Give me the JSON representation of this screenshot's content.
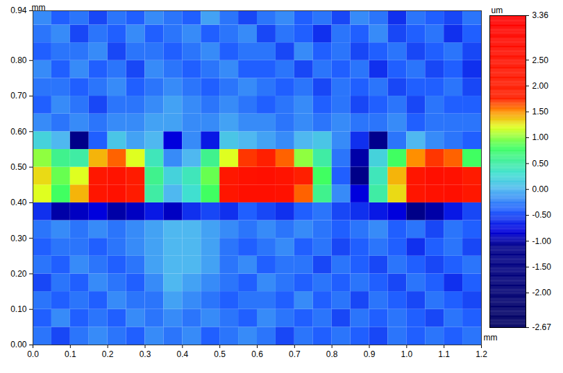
{
  "chart_data": {
    "type": "heatmap",
    "x_label": "mm",
    "y_label": "mm",
    "xlim": [
      0,
      1.2
    ],
    "ylim": [
      0,
      0.94
    ],
    "xticks": [
      {
        "value": 0,
        "label": "0.0"
      },
      0.1,
      0.2,
      0.3,
      0.4,
      0.5,
      0.6,
      0.7,
      0.8,
      0.9,
      {
        "value": 1,
        "label": "1.0"
      },
      1.1,
      1.2
    ],
    "yticks": [
      {
        "value": 0,
        "label": "0.00"
      },
      {
        "value": 0.1,
        "label": "0.10"
      },
      {
        "value": 0.2,
        "label": "0.20"
      },
      {
        "value": 0.3,
        "label": "0.30"
      },
      {
        "value": 0.4,
        "label": "0.40"
      },
      {
        "value": 0.5,
        "label": "0.50"
      },
      {
        "value": 0.6,
        "label": "0.60"
      },
      {
        "value": 0.7,
        "label": "0.70"
      },
      {
        "value": 0.8,
        "label": "0.80"
      },
      0.94
    ],
    "x": [
      0.025,
      0.075,
      0.125,
      0.175,
      0.225,
      0.275,
      0.325,
      0.375,
      0.425,
      0.475,
      0.525,
      0.575,
      0.625,
      0.675,
      0.725,
      0.775,
      0.825,
      0.875,
      0.925,
      0.975,
      1.025,
      1.075,
      1.125,
      1.175
    ],
    "y": [
      0.025,
      0.075,
      0.125,
      0.175,
      0.225,
      0.275,
      0.325,
      0.375,
      0.425,
      0.475,
      0.525,
      0.575,
      0.625,
      0.675,
      0.725,
      0.775,
      0.825,
      0.875,
      0.925
    ],
    "z": [
      [
        -0.3,
        -0.5,
        -0.3,
        -0.2,
        -0.3,
        -0.4,
        -0.2,
        -0.3,
        -0.2,
        -0.4,
        -0.3,
        -0.2,
        -0.3,
        -0.5,
        -0.3,
        -0.4,
        -0.3,
        -0.4,
        -0.5,
        -0.3,
        -0.4,
        -0.3,
        -0.4,
        -0.3
      ],
      [
        -0.4,
        -0.2,
        -0.4,
        -0.3,
        -0.4,
        -0.2,
        -0.3,
        -0.2,
        -0.3,
        -0.2,
        -0.3,
        -0.4,
        -0.2,
        -0.3,
        -0.4,
        -0.3,
        -0.5,
        -0.3,
        -0.4,
        -0.3,
        -0.4,
        -0.5,
        -0.3,
        -0.4
      ],
      [
        -0.3,
        -0.4,
        -0.3,
        -0.4,
        -0.2,
        -0.3,
        -0.3,
        -0.1,
        -0.2,
        -0.3,
        -0.4,
        -0.3,
        -0.3,
        -0.4,
        -0.2,
        -0.4,
        -0.3,
        -0.5,
        -0.3,
        -0.4,
        -0.5,
        -0.3,
        -0.4,
        -0.5
      ],
      [
        -0.5,
        -0.3,
        -0.4,
        -0.2,
        -0.3,
        -0.4,
        -0.2,
        0.0,
        -0.1,
        -0.2,
        -0.3,
        -0.4,
        -0.2,
        -0.3,
        -0.4,
        -0.3,
        -0.4,
        -0.3,
        -0.4,
        -0.5,
        -0.3,
        -0.4,
        -0.6,
        -0.4
      ],
      [
        -0.3,
        -0.4,
        -0.2,
        -0.3,
        -0.4,
        -0.3,
        -0.1,
        0.0,
        0.0,
        -0.1,
        -0.3,
        -0.2,
        -0.4,
        -0.3,
        -0.3,
        -0.5,
        -0.3,
        -0.4,
        -0.5,
        -0.3,
        -0.4,
        -0.5,
        -0.4,
        -0.3
      ],
      [
        -0.4,
        -0.3,
        -0.3,
        -0.4,
        -0.3,
        -0.2,
        -0.1,
        0.0,
        0.0,
        -0.1,
        -0.3,
        -0.4,
        -0.3,
        -0.2,
        -0.4,
        -0.3,
        -0.5,
        -0.4,
        -0.3,
        -0.4,
        -0.6,
        -0.4,
        -0.3,
        -0.5
      ],
      [
        -0.3,
        -0.2,
        -0.3,
        -0.2,
        -0.3,
        -0.2,
        -0.1,
        0.0,
        0.0,
        -0.1,
        -0.2,
        -0.3,
        -0.2,
        -0.3,
        -0.2,
        -0.3,
        -0.4,
        -0.3,
        -0.2,
        -0.4,
        -0.3,
        -0.5,
        -0.3,
        -0.4
      ],
      [
        -0.6,
        -1.0,
        -0.9,
        -0.8,
        -1.0,
        -0.9,
        -0.7,
        -0.9,
        -0.6,
        -0.5,
        -0.6,
        -0.4,
        -0.5,
        -0.6,
        -0.4,
        -0.3,
        -0.5,
        -0.6,
        -0.7,
        -0.8,
        -1.2,
        -1.0,
        -0.7,
        -0.5
      ],
      [
        1.2,
        0.8,
        1.4,
        2.3,
        2.5,
        2.0,
        0.5,
        0.0,
        0.3,
        0.8,
        2.3,
        2.6,
        2.6,
        2.5,
        1.6,
        0.6,
        -0.2,
        -0.8,
        0.5,
        1.3,
        2.3,
        2.5,
        2.6,
        2.2
      ],
      [
        1.3,
        0.9,
        1.2,
        2.2,
        2.4,
        2.0,
        0.6,
        0.2,
        0.4,
        0.9,
        2.2,
        2.5,
        2.6,
        2.4,
        1.8,
        0.8,
        -0.4,
        -1.2,
        0.4,
        1.4,
        2.3,
        2.6,
        2.5,
        2.0
      ],
      [
        1.0,
        0.6,
        0.5,
        1.4,
        1.6,
        1.2,
        0.4,
        -0.2,
        0.0,
        0.6,
        1.2,
        1.7,
        1.8,
        1.6,
        1.0,
        0.5,
        -0.3,
        -1.0,
        0.2,
        0.8,
        1.5,
        1.7,
        1.6,
        0.8
      ],
      [
        0.2,
        0.0,
        -1.2,
        -0.4,
        0.1,
        -0.1,
        0.0,
        -0.8,
        -0.2,
        -0.7,
        0.1,
        0.0,
        -0.1,
        -0.2,
        0.0,
        0.1,
        -0.2,
        -0.6,
        -1.1,
        -0.3,
        0.0,
        -0.2,
        -0.3,
        -0.4
      ],
      [
        -0.2,
        -0.3,
        -0.2,
        -0.3,
        -0.2,
        -0.2,
        -0.1,
        -0.1,
        -0.2,
        -0.2,
        -0.1,
        -0.2,
        -0.2,
        -0.3,
        -0.2,
        -0.3,
        -0.2,
        -0.3,
        -0.3,
        -0.2,
        -0.4,
        -0.3,
        -0.3,
        -0.3
      ],
      [
        -0.4,
        -0.2,
        -0.3,
        -0.5,
        -0.3,
        -0.3,
        -0.2,
        -0.1,
        -0.2,
        -0.3,
        -0.2,
        -0.3,
        -0.4,
        -0.3,
        -0.2,
        -0.4,
        -0.3,
        -0.5,
        -0.4,
        -0.3,
        -0.5,
        -0.3,
        -0.4,
        -0.4
      ],
      [
        -0.3,
        -0.3,
        -0.4,
        -0.3,
        -0.2,
        -0.4,
        -0.3,
        -0.2,
        -0.3,
        -0.4,
        -0.3,
        -0.2,
        -0.3,
        -0.4,
        -0.3,
        -0.5,
        -0.3,
        -0.4,
        -0.3,
        -0.5,
        -0.4,
        -0.4,
        -0.3,
        -0.5
      ],
      [
        -0.2,
        -0.4,
        -0.2,
        -0.4,
        -0.3,
        -0.5,
        -0.2,
        -0.3,
        -0.4,
        -0.3,
        -0.2,
        -0.4,
        -0.4,
        -0.3,
        -0.5,
        -0.3,
        -0.4,
        -0.3,
        -0.6,
        -0.4,
        -0.3,
        -0.5,
        -0.4,
        -0.6
      ],
      [
        -0.4,
        -0.3,
        -0.3,
        -0.2,
        -0.5,
        -0.3,
        -0.3,
        -0.4,
        -0.3,
        -0.2,
        -0.4,
        -0.3,
        -0.3,
        -0.5,
        -0.2,
        -0.4,
        -0.3,
        -0.5,
        -0.4,
        -0.3,
        -0.5,
        -0.4,
        -0.3,
        -0.5
      ],
      [
        -0.3,
        -0.2,
        -0.5,
        -0.3,
        -0.4,
        -0.2,
        -0.4,
        -0.3,
        -0.2,
        -0.4,
        -0.3,
        -0.2,
        -0.5,
        -0.3,
        -0.4,
        -0.6,
        -0.3,
        -0.4,
        -0.2,
        -0.5,
        -0.4,
        -0.3,
        -0.6,
        -0.4
      ],
      [
        -0.2,
        -0.4,
        -0.3,
        -0.5,
        -0.3,
        -0.4,
        -0.2,
        -0.3,
        -0.4,
        -0.1,
        -0.3,
        -0.5,
        -0.3,
        -0.2,
        -0.4,
        -0.3,
        -0.5,
        -0.2,
        -0.3,
        -0.6,
        -0.3,
        -0.4,
        -0.5,
        -0.3
      ]
    ],
    "colorbar": {
      "label": "um",
      "range": [
        -2.67,
        3.36
      ],
      "ticks": [
        3.36,
        {
          "value": 2.5,
          "label": "2.50"
        },
        {
          "value": 2,
          "label": "2.00"
        },
        {
          "value": 1.5,
          "label": "1.50"
        },
        {
          "value": 1,
          "label": "1.00"
        },
        {
          "value": 0.5,
          "label": "0.50"
        },
        {
          "value": 0,
          "label": "0.00"
        },
        {
          "value": -0.5,
          "label": "-0.50"
        },
        {
          "value": -1,
          "label": "-1.00"
        },
        {
          "value": -1.5,
          "label": "-1.50"
        },
        {
          "value": -2,
          "label": "-2.00"
        },
        -2.67
      ]
    }
  }
}
